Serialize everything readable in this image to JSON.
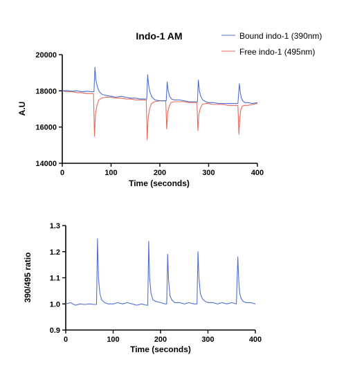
{
  "chart_data": [
    {
      "type": "line",
      "title": "Indo-1 AM",
      "xlabel": "Time (seconds)",
      "ylabel": "A.U",
      "xlim": [
        0,
        400
      ],
      "ylim": [
        14000,
        20000
      ],
      "xticks": [
        0,
        100,
        200,
        300,
        400
      ],
      "xtick_labels": [
        "0",
        "100",
        "200",
        "300",
        "400"
      ],
      "yticks": [
        14000,
        16000,
        18000,
        20000
      ],
      "ytick_labels": [
        "14000",
        "16000",
        "18000",
        "20000"
      ],
      "grid": false,
      "legend_position": "top-right",
      "series": [
        {
          "name": "Bound indo-1 (390nm)",
          "color": "#4f6ed1",
          "x": [
            0,
            10,
            20,
            30,
            40,
            50,
            60,
            65,
            67,
            69,
            72,
            76,
            82,
            90,
            100,
            110,
            120,
            130,
            140,
            150,
            160,
            170,
            173,
            175,
            177,
            180,
            184,
            190,
            200,
            210,
            213,
            215,
            217,
            220,
            224,
            230,
            240,
            250,
            260,
            270,
            277,
            279,
            281,
            284,
            288,
            294,
            300,
            310,
            320,
            330,
            340,
            350,
            360,
            363,
            365,
            367,
            370,
            374,
            380,
            390,
            400
          ],
          "y": [
            18000,
            18020,
            17980,
            18000,
            17950,
            17980,
            17950,
            17950,
            19300,
            18600,
            18200,
            17950,
            17800,
            17750,
            17700,
            17650,
            17700,
            17650,
            17600,
            17600,
            17550,
            17550,
            17550,
            18900,
            18300,
            17900,
            17650,
            17500,
            17450,
            17450,
            17450,
            18500,
            18000,
            17700,
            17550,
            17500,
            17500,
            17450,
            17400,
            17400,
            17400,
            18600,
            18000,
            17700,
            17500,
            17400,
            17350,
            17350,
            17300,
            17300,
            17300,
            17300,
            17300,
            18400,
            17900,
            17600,
            17450,
            17350,
            17350,
            17300,
            17350
          ]
        },
        {
          "name": "Free indo-1 (495nm)",
          "color": "#e8685b",
          "x": [
            0,
            10,
            20,
            30,
            40,
            50,
            60,
            64,
            66,
            68,
            71,
            75,
            81,
            89,
            100,
            110,
            120,
            130,
            140,
            150,
            160,
            170,
            172,
            174,
            176,
            179,
            183,
            189,
            200,
            210,
            212,
            214,
            216,
            219,
            223,
            229,
            240,
            250,
            260,
            270,
            276,
            278,
            280,
            283,
            287,
            293,
            300,
            310,
            320,
            330,
            340,
            350,
            360,
            362,
            364,
            366,
            369,
            373,
            380,
            390,
            400
          ],
          "y": [
            18000,
            17950,
            17950,
            17900,
            17900,
            17850,
            17850,
            17850,
            15500,
            16700,
            17200,
            17500,
            17600,
            17650,
            17650,
            17600,
            17600,
            17550,
            17550,
            17500,
            17500,
            17500,
            17500,
            15300,
            16500,
            17000,
            17300,
            17400,
            17450,
            17450,
            17450,
            15900,
            16800,
            17150,
            17350,
            17400,
            17400,
            17400,
            17350,
            17350,
            17350,
            15800,
            16700,
            17050,
            17250,
            17300,
            17300,
            17250,
            17250,
            17250,
            17200,
            17200,
            17200,
            15600,
            16500,
            16950,
            17150,
            17200,
            17200,
            17250,
            17300
          ]
        }
      ]
    },
    {
      "type": "line",
      "title": "",
      "xlabel": "Time (seconds)",
      "ylabel": "390/495 ratio",
      "xlim": [
        0,
        400
      ],
      "ylim": [
        0.9,
        1.3
      ],
      "xticks": [
        0,
        100,
        200,
        300,
        400
      ],
      "xtick_labels": [
        "0",
        "100",
        "200",
        "300",
        "400"
      ],
      "yticks": [
        0.9,
        1.0,
        1.1,
        1.2,
        1.3
      ],
      "ytick_labels": [
        "0.9",
        "1.0",
        "1.1",
        "1.2",
        "1.3"
      ],
      "grid": false,
      "series": [
        {
          "name": "",
          "color": "#4f6ed1",
          "x": [
            0,
            10,
            20,
            30,
            40,
            50,
            60,
            65,
            67,
            69,
            72,
            76,
            82,
            90,
            100,
            110,
            120,
            130,
            140,
            150,
            160,
            170,
            173,
            175,
            177,
            180,
            184,
            190,
            200,
            210,
            213,
            215,
            217,
            220,
            224,
            230,
            240,
            250,
            260,
            270,
            277,
            279,
            281,
            284,
            288,
            294,
            300,
            310,
            320,
            330,
            340,
            350,
            360,
            363,
            365,
            367,
            370,
            374,
            380,
            390,
            400
          ],
          "y": [
            1.0,
            1.005,
            0.995,
            1.0,
            0.998,
            1.0,
            0.998,
            0.998,
            1.25,
            1.1,
            1.04,
            1.015,
            1.005,
            1.0,
            1.0,
            1.005,
            1.0,
            1.005,
            1.0,
            0.995,
            1.0,
            0.995,
            0.995,
            1.24,
            1.1,
            1.04,
            1.015,
            1.01,
            1.005,
            1.0,
            1.0,
            1.19,
            1.09,
            1.03,
            1.015,
            1.005,
            1.005,
            1.0,
            1.005,
            1.0,
            1.0,
            1.2,
            1.1,
            1.04,
            1.02,
            1.01,
            1.005,
            1.005,
            1.0,
            1.005,
            1.0,
            1.005,
            1.0,
            1.18,
            1.09,
            1.04,
            1.02,
            1.01,
            1.005,
            1.005,
            1.0
          ]
        }
      ]
    }
  ]
}
